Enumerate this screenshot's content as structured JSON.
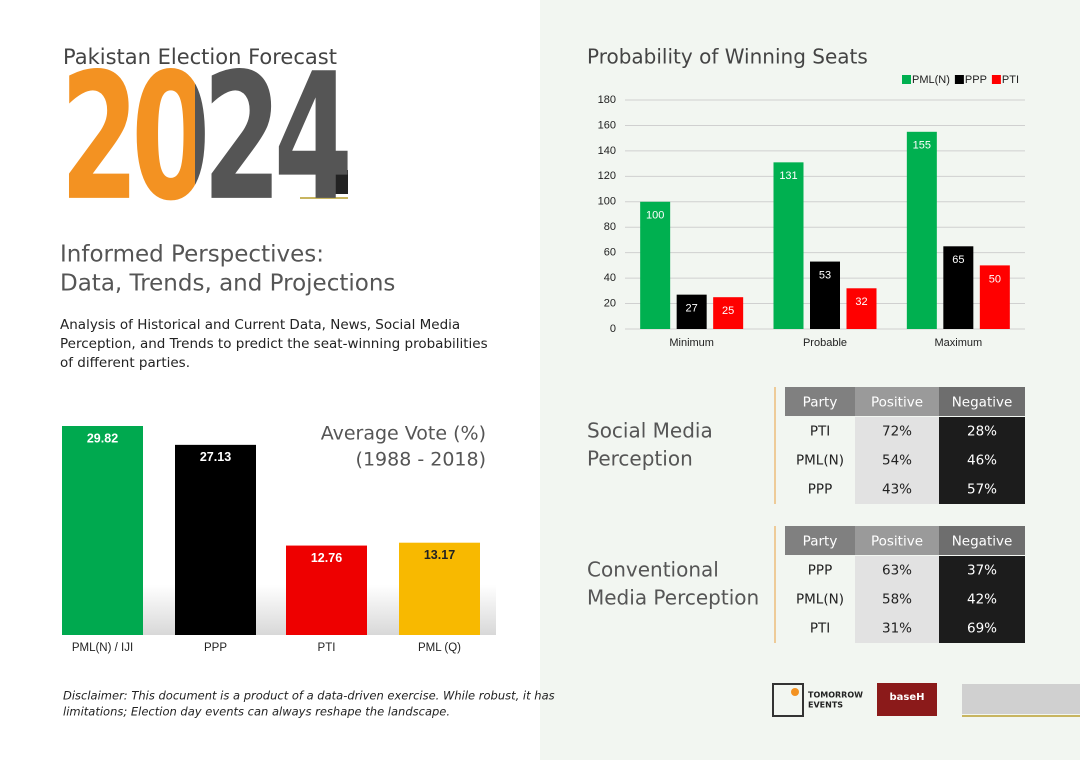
{
  "header": {
    "kicker": "Pakistan Election Forecast",
    "year": "2024",
    "headline": [
      "Informed Perspectives:",
      "Data, Trends, and Projections"
    ],
    "description": [
      "Analysis of Historical and Current Data, News, Social Media",
      "Perception, and Trends to predict the seat-winning probabilities",
      "of different parties."
    ]
  },
  "chart_data": [
    {
      "type": "bar",
      "title": "Average  Vote (%)",
      "subtitle": "(1988 - 2018)",
      "categories": [
        "PML(N) / IJI",
        "PPP",
        "PTI",
        "PML (Q)"
      ],
      "values": [
        29.82,
        27.13,
        12.76,
        13.17
      ],
      "colors": [
        "#00a94f",
        "#000000",
        "#ee0000",
        "#f8b900"
      ]
    },
    {
      "type": "grouped-bar",
      "title": "Probability of Winning Seats",
      "categories": [
        "Minimum",
        "Probable",
        "Maximum"
      ],
      "series": [
        {
          "name": "PML(N)",
          "color": "#00b050",
          "values": [
            100,
            131,
            155
          ]
        },
        {
          "name": "PPP",
          "color": "#000000",
          "values": [
            27,
            53,
            65
          ]
        },
        {
          "name": "PTI",
          "color": "#ff0000",
          "values": [
            25,
            32,
            50
          ]
        }
      ],
      "ylim": [
        0,
        180
      ],
      "yticks": [
        0,
        20,
        40,
        60,
        80,
        100,
        120,
        140,
        160,
        180
      ],
      "grid": true,
      "legend": "top-right"
    }
  ],
  "tables": [
    {
      "title": [
        "Social Media",
        "Perception"
      ],
      "header": [
        "Party",
        "Positive",
        "Negative"
      ],
      "rows": [
        [
          "PTI",
          "72%",
          "28%"
        ],
        [
          "PML(N)",
          "54%",
          "46%"
        ],
        [
          "PPP",
          "43%",
          "57%"
        ]
      ]
    },
    {
      "title": [
        "Conventional",
        "Media Perception"
      ],
      "header": [
        "Party",
        "Positive",
        "Negative"
      ],
      "rows": [
        [
          "PPP",
          "63%",
          "37%"
        ],
        [
          "PML(N)",
          "58%",
          "42%"
        ],
        [
          "PTI",
          "31%",
          "69%"
        ]
      ]
    }
  ],
  "disclaimer": [
    "Disclaimer: This document is a product of a data-driven exercise. While robust, it has",
    "limitations; Election day events can always reshape the landscape."
  ],
  "logos": {
    "tomorrow": [
      "TOMORROW",
      "EVENTS"
    ],
    "base": "baseH"
  }
}
